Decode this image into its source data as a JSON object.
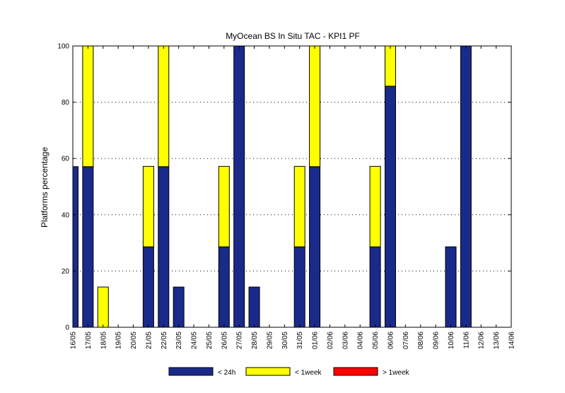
{
  "chart_data": {
    "type": "bar",
    "stacked": true,
    "title": "MyOcean  BS In Situ TAC - KPI1  PF",
    "xlabel": "",
    "ylabel": "Platforms percentage",
    "ylim": [
      0,
      100
    ],
    "yticks": [
      0,
      20,
      40,
      60,
      80,
      100
    ],
    "grid": "horizontal dotted",
    "legend_position": "bottom",
    "categories": [
      "16/05",
      "17/05",
      "18/05",
      "19/05",
      "20/05",
      "21/05",
      "22/05",
      "23/05",
      "24/05",
      "25/05",
      "26/05",
      "27/05",
      "28/05",
      "29/05",
      "30/05",
      "31/05",
      "01/06",
      "02/06",
      "03/06",
      "04/06",
      "05/06",
      "06/06",
      "07/06",
      "08/06",
      "09/06",
      "10/06",
      "11/06",
      "12/06",
      "13/06",
      "14/06"
    ],
    "series": [
      {
        "name": "< 24h",
        "color": "#1a2a8a",
        "values": [
          57.1,
          57.1,
          0,
          0,
          0,
          28.6,
          57.1,
          14.3,
          0,
          0,
          28.6,
          100,
          14.3,
          0,
          0,
          28.6,
          57.1,
          0,
          0,
          0,
          28.6,
          85.7,
          0,
          0,
          0,
          28.6,
          100,
          0,
          0,
          0
        ]
      },
      {
        "name": "< 1week",
        "color": "#ffff00",
        "values": [
          0,
          42.9,
          14.3,
          0,
          0,
          28.6,
          42.9,
          0,
          0,
          0,
          28.6,
          0,
          0,
          0,
          0,
          28.6,
          42.9,
          0,
          0,
          0,
          28.6,
          14.3,
          0,
          0,
          0,
          0,
          0,
          0,
          0,
          0
        ]
      },
      {
        "name": "> 1week",
        "color": "#ff0000",
        "values": [
          0,
          0,
          0,
          0,
          0,
          0,
          0,
          0,
          0,
          0,
          0,
          0,
          0,
          0,
          0,
          0,
          0,
          0,
          0,
          0,
          0,
          0,
          0,
          0,
          0,
          0,
          0,
          0,
          0,
          0
        ]
      }
    ]
  }
}
